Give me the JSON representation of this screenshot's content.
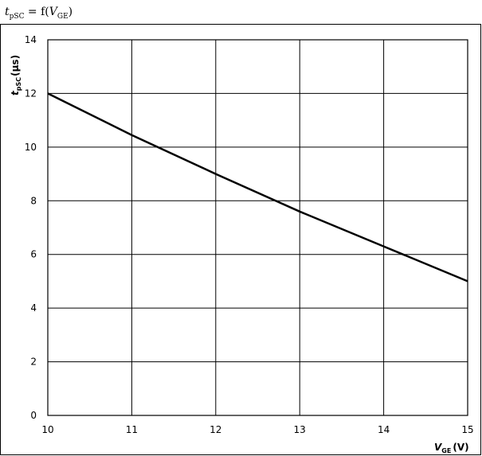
{
  "header": {
    "title_var": "t",
    "title_sub": "pSC",
    "title_eq": " = f(",
    "title_arg": "V",
    "title_arg_sub": "GE",
    "title_close": ")"
  },
  "chart_data": {
    "type": "line",
    "xlabel_var": "V",
    "xlabel_sub": "GE",
    "xlabel_unit": "(V)",
    "ylabel_var": "t",
    "ylabel_sub": "pSC",
    "ylabel_unit": "(µs)",
    "xlim": [
      10,
      15
    ],
    "ylim": [
      0,
      14
    ],
    "xticks": [
      10,
      11,
      12,
      13,
      14,
      15
    ],
    "yticks": [
      0,
      2,
      4,
      6,
      8,
      10,
      12,
      14
    ],
    "grid": true,
    "series": [
      {
        "color": "#000000",
        "x": [
          10,
          11,
          12,
          13,
          14,
          15
        ],
        "y": [
          12,
          10.45,
          9.0,
          7.6,
          6.3,
          5.0
        ]
      }
    ]
  }
}
